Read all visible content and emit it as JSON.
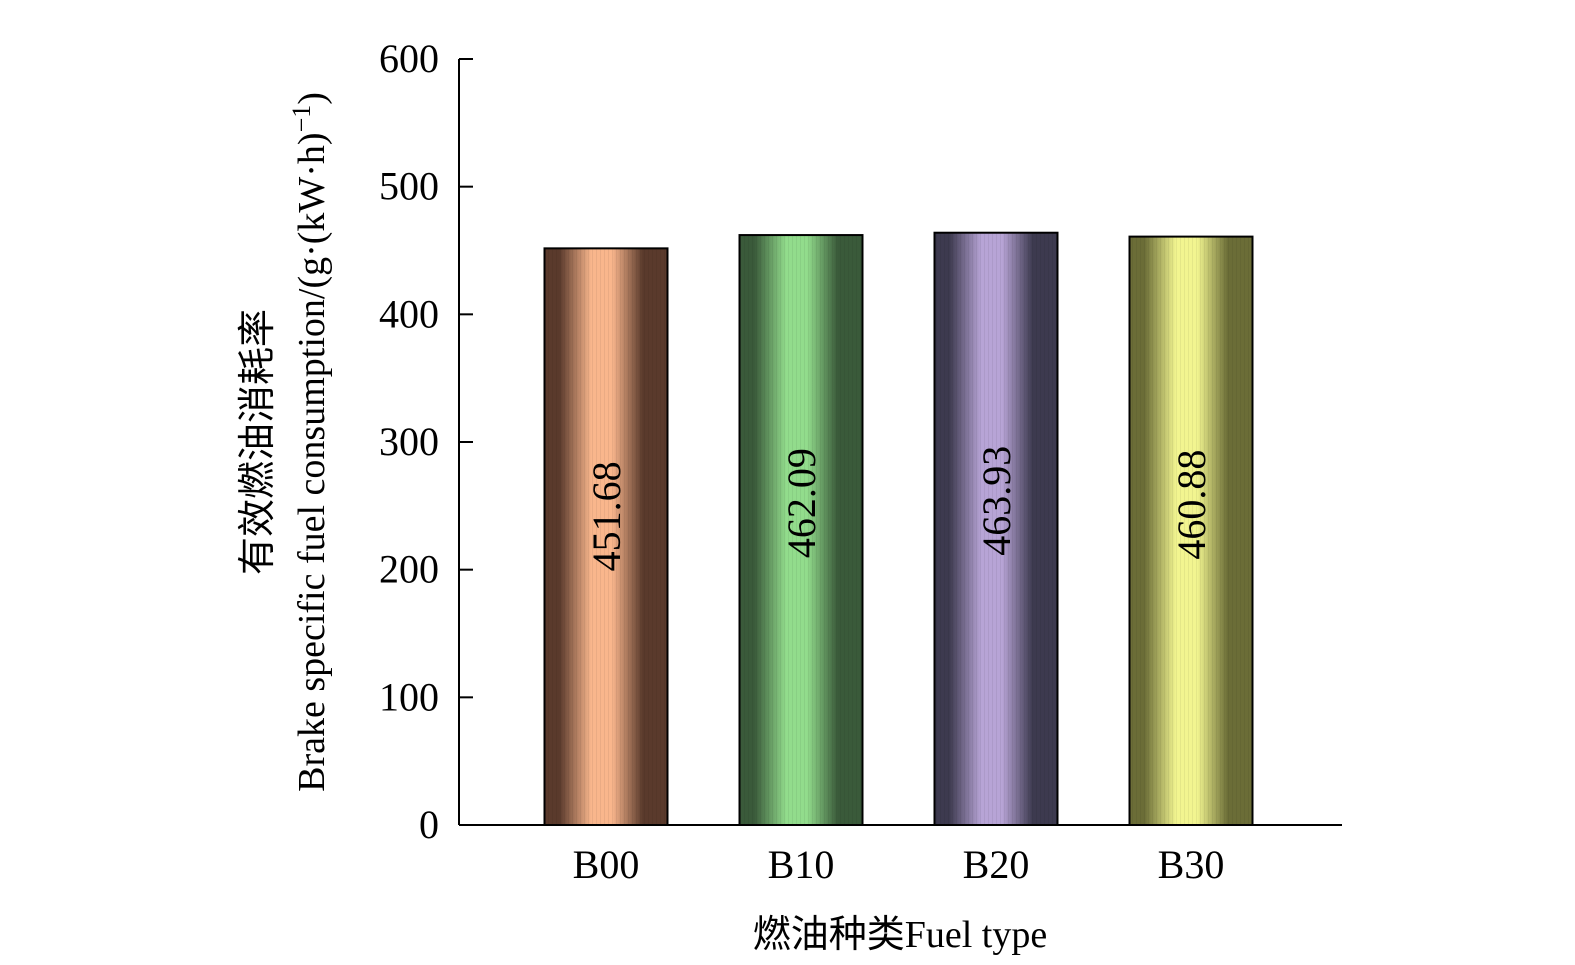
{
  "chart_data": {
    "type": "bar",
    "title": "",
    "categories": [
      "B00",
      "B10",
      "B20",
      "B30"
    ],
    "values": [
      451.68,
      462.09,
      463.93,
      460.88
    ],
    "value_labels": [
      "451.68",
      "462.09",
      "463.93",
      "460.88"
    ],
    "xlabel": "燃油种类Fuel type",
    "ylabel_line1": "有效燃油消耗率",
    "ylabel_line2": "Brake specific fuel consumption/(g·(kW·h)",
    "ylabel_sup": "−1",
    "ylabel_close": ")",
    "ylim": [
      0,
      600
    ],
    "yticks": [
      0,
      100,
      200,
      300,
      400,
      500,
      600
    ],
    "ytick_labels": [
      "0",
      "100",
      "200",
      "300",
      "400",
      "500",
      "600"
    ],
    "grid": false,
    "legend": "none",
    "colors": [
      {
        "light": "#f9b68c",
        "dark": "#5a3a2c"
      },
      {
        "light": "#92dc8c",
        "dark": "#3a5a3a"
      },
      {
        "light": "#b7a4d6",
        "dark": "#3d3a4f"
      },
      {
        "light": "#f2f590",
        "dark": "#6b6d37"
      }
    ]
  }
}
